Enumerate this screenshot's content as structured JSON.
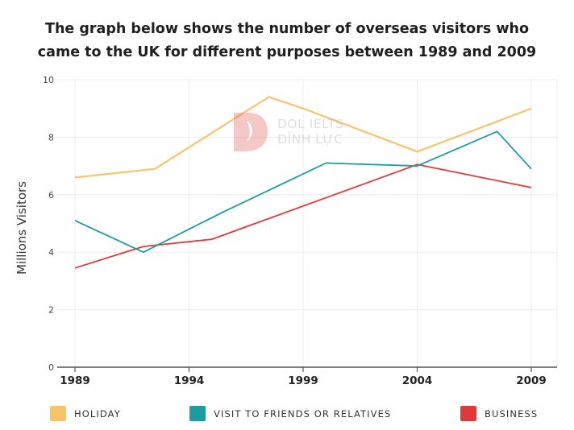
{
  "title_lines": [
    "The graph below shows the number of overseas visitors who",
    "came to the UK for different purposes between 1989 and 2009"
  ],
  "watermark": {
    "line1": "DOL IELTS",
    "line2": "ĐÌNH LỰC"
  },
  "colors": {
    "holiday": "#f7c46c",
    "visit": "#1d9ca0",
    "business": "#e0393b",
    "grid": "#ececec",
    "axis": "#555555"
  },
  "chart_data": {
    "type": "line",
    "title": "The graph below shows the number of overseas visitors who came to the UK for different purposes between 1989 and 2009",
    "xlabel": "",
    "ylabel": "Millions Visitors",
    "xlim": [
      1989,
      2009
    ],
    "ylim": [
      0,
      10
    ],
    "x_ticks": [
      "1989",
      "1994",
      "1999",
      "2004",
      "2009"
    ],
    "y_ticks": [
      "0",
      "2",
      "4",
      "6",
      "8",
      "10"
    ],
    "legend_position": "bottom",
    "series": [
      {
        "name": "HOLIDAY",
        "key": "holiday",
        "x": [
          1989,
          1992.5,
          1997.5,
          1999,
          2004,
          2009
        ],
        "y": [
          6.6,
          6.9,
          9.4,
          9.0,
          7.5,
          9.0
        ]
      },
      {
        "name": "VISIT TO FRIENDS OR RELATIVES",
        "key": "visit",
        "x": [
          1989,
          1992,
          1995.5,
          2000,
          2004,
          2007.5,
          2009
        ],
        "y": [
          5.1,
          4.0,
          5.4,
          7.1,
          7.0,
          8.2,
          6.9
        ]
      },
      {
        "name": "BUSINESS",
        "key": "business",
        "x": [
          1989,
          1992,
          1995,
          2004,
          2009
        ],
        "y": [
          3.45,
          4.2,
          4.45,
          7.05,
          6.25
        ]
      }
    ]
  }
}
